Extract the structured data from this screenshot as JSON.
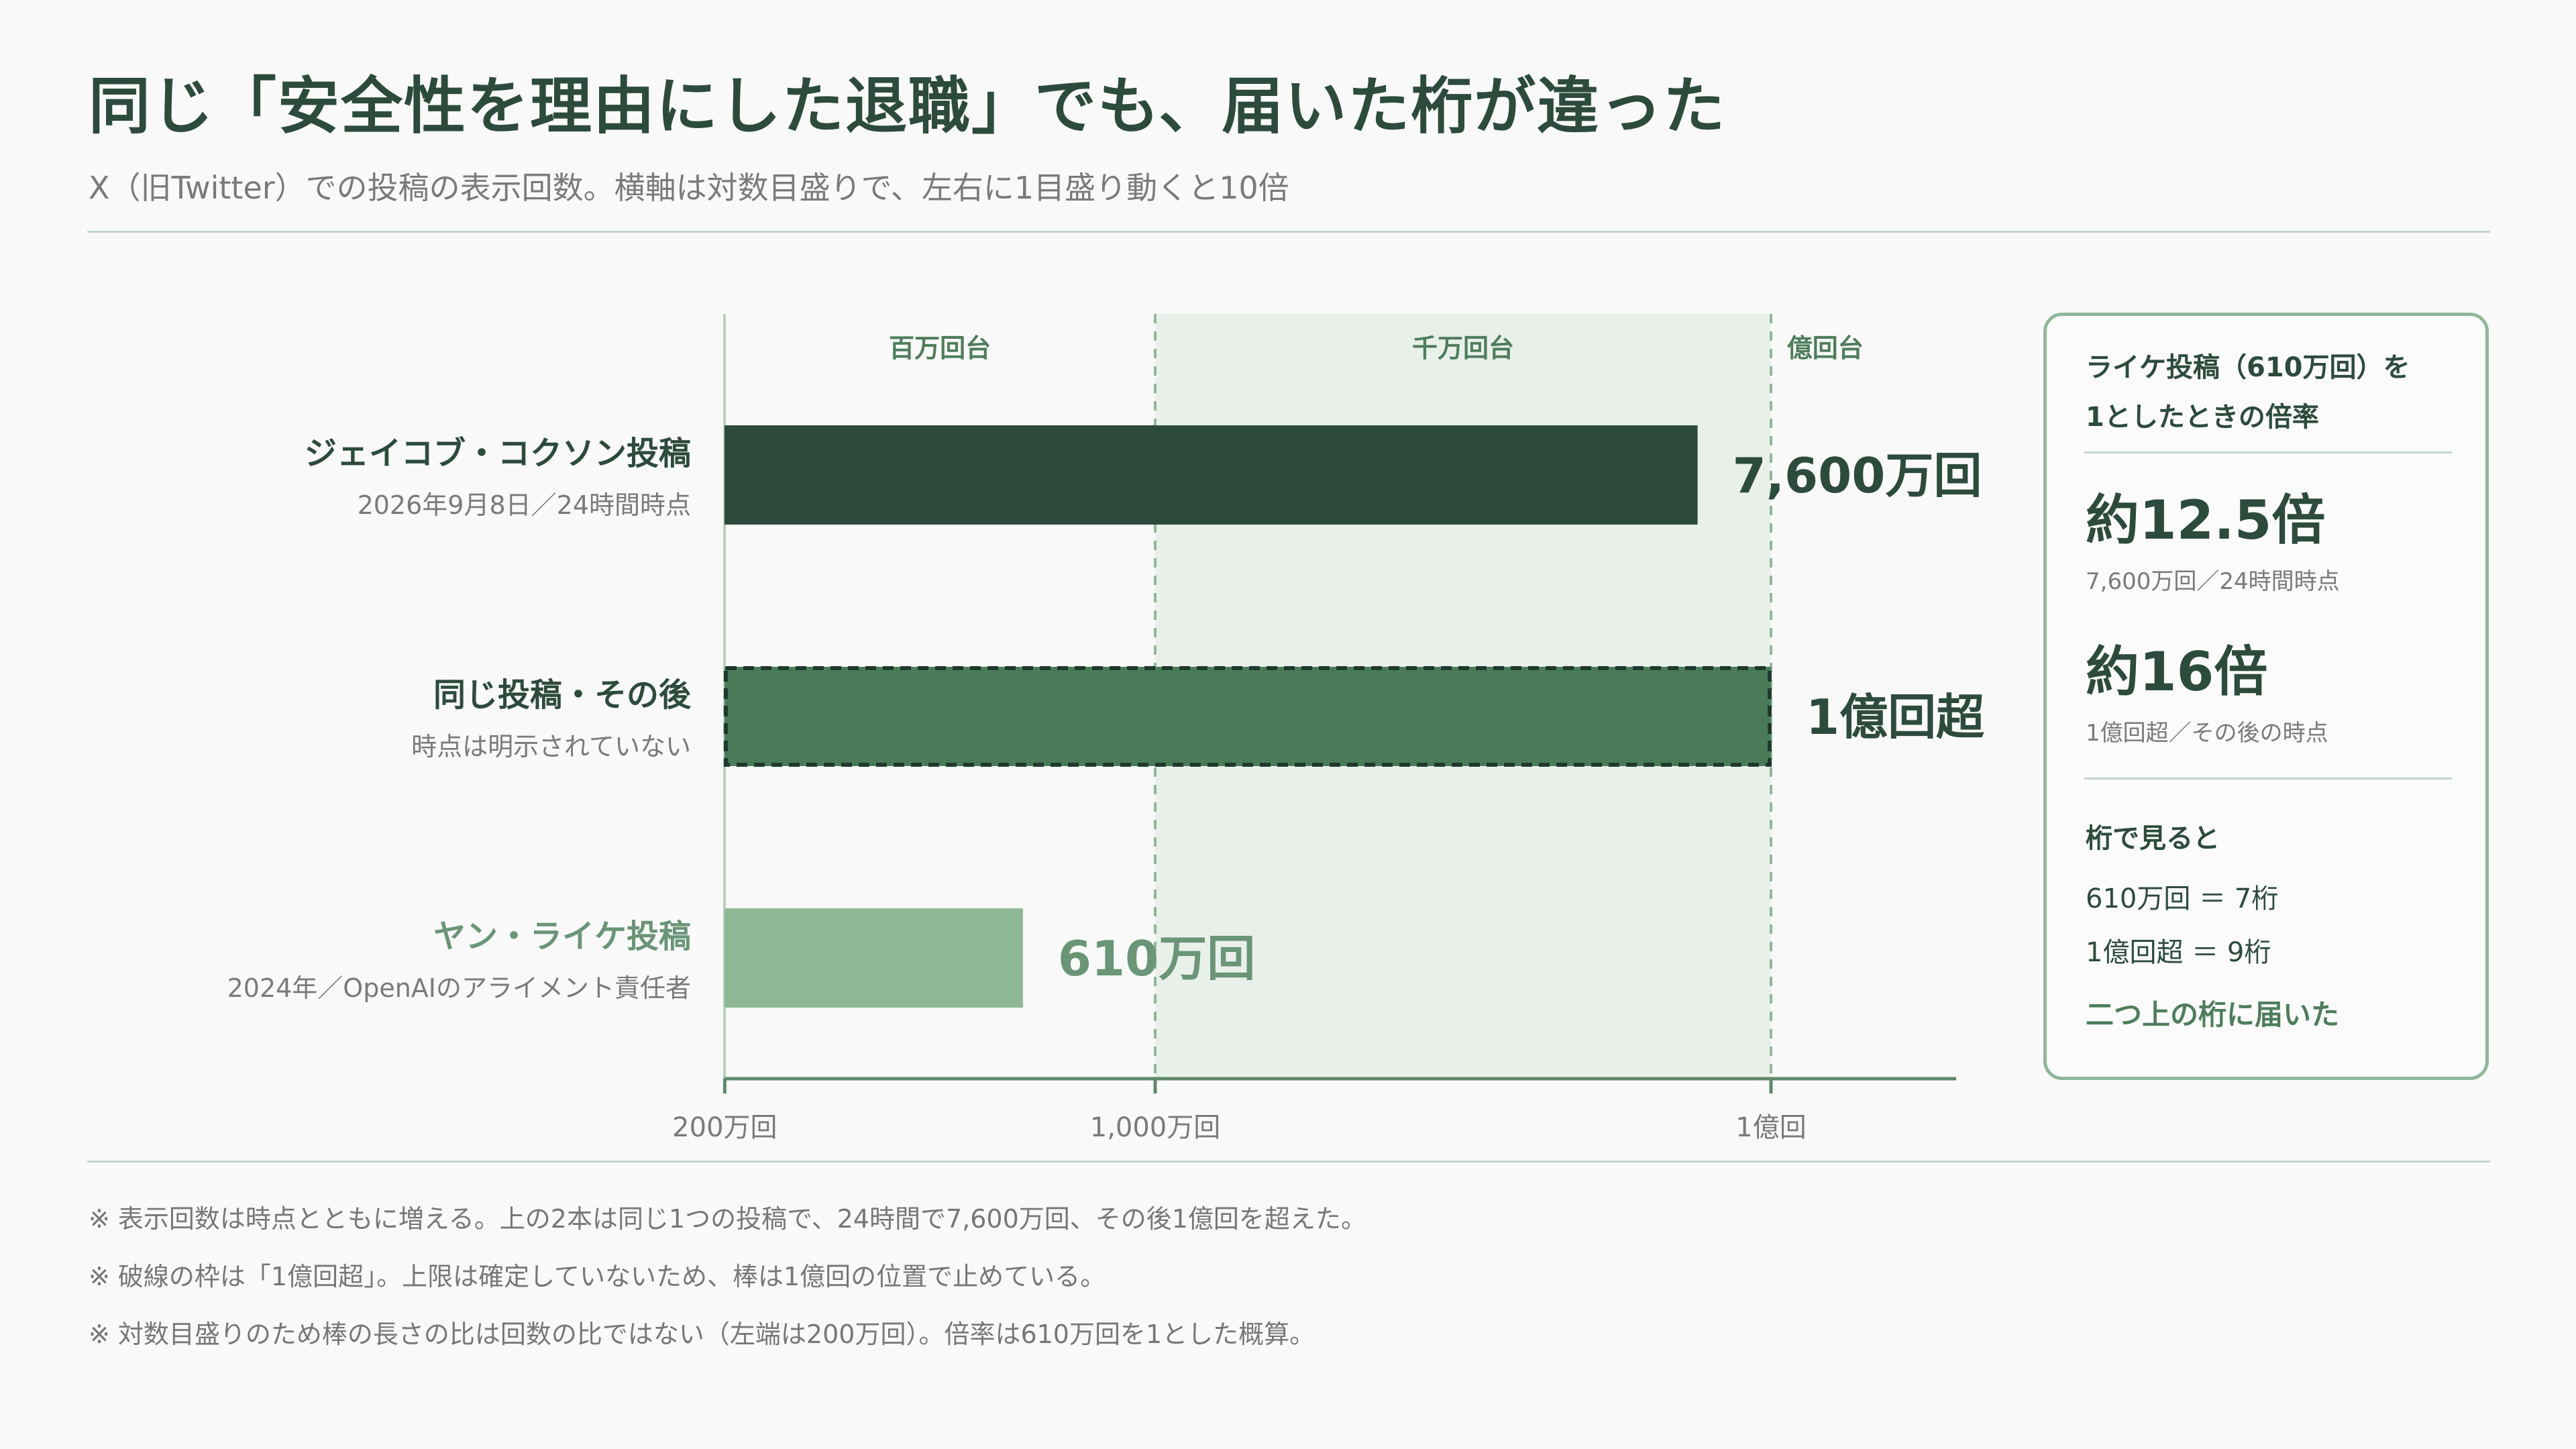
{
  "title": "同じ「安全性を理由にした退職」でも、届いた桁が違った",
  "subtitle": "X（旧Twitter）での投稿の表示回数。横軸は対数目盛りで、左右に1目盛り動くと10倍",
  "colors": {
    "dark": "#2d4b3c",
    "mid": "#4a7b58",
    "light": "#8fb996",
    "band": "#e9f0ea",
    "grid": "#8fb89a"
  },
  "chart_data": {
    "type": "bar",
    "orientation": "horizontal",
    "x_scale": "log",
    "xlim": [
      2000000,
      150000000
    ],
    "x_ticks": [
      {
        "value": 2000000,
        "label": "200万回"
      },
      {
        "value": 10000000,
        "label": "1,000万回"
      },
      {
        "value": 100000000,
        "label": "1億回"
      }
    ],
    "bands": [
      {
        "label": "百万回台",
        "from": 2000000,
        "to": 10000000,
        "shaded": false
      },
      {
        "label": "千万回台",
        "from": 10000000,
        "to": 100000000,
        "shaded": true
      },
      {
        "label": "億回台",
        "from": 100000000,
        "to": 150000000,
        "shaded": false
      }
    ],
    "bars": [
      {
        "title": "ジェイコブ・コクソン投稿",
        "sub": "2026年9月8日／24時間時点",
        "value": 76000000,
        "value_label": "7,600万回",
        "color": "#2d4b3c",
        "dashed": false
      },
      {
        "title": "同じ投稿・その後",
        "sub": "時点は明示されていない",
        "value": 100000000,
        "value_label": "1億回超",
        "color": "#4a7b58",
        "dashed": true
      },
      {
        "title": "ヤン・ライケ投稿",
        "sub": "2024年／OpenAIのアライメント責任者",
        "value": 6100000,
        "value_label": "610万回",
        "color": "#8fb996",
        "dashed": false
      }
    ]
  },
  "panel": {
    "head_line1": "ライケ投稿（610万回）を",
    "head_line2": "1としたときの倍率",
    "ratio1": "約12.5倍",
    "ratio1_note": "7,600万回／24時間時点",
    "ratio2": "約16倍",
    "ratio2_note": "1億回超／その後の時点",
    "digits_label": "桁で見ると",
    "digits_line1": "610万回 ＝ 7桁",
    "digits_line2": "1億回超 ＝ 9桁",
    "conclusion": "二つ上の桁に届いた"
  },
  "notes": [
    "※ 表示回数は時点とともに増える。上の2本は同じ1つの投稿で、24時間で7,600万回、その後1億回を超えた。",
    "※ 破線の枠は「1億回超」。上限は確定していないため、棒は1億回の位置で止めている。",
    "※ 対数目盛りのため棒の長さの比は回数の比ではない（左端は200万回）。倍率は610万回を1とした概算。"
  ]
}
